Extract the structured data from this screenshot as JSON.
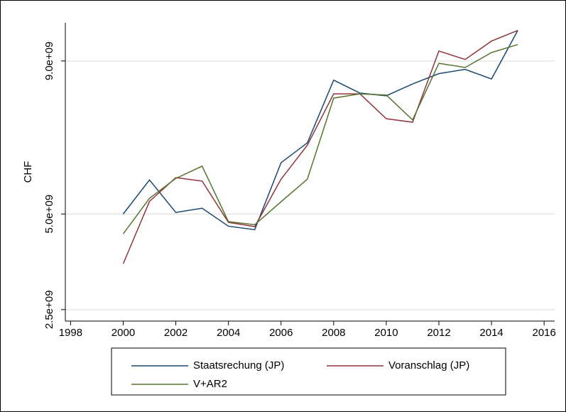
{
  "chart_data": {
    "type": "line",
    "y_label": "CHF",
    "x": [
      2000,
      2001,
      2002,
      2003,
      2004,
      2005,
      2006,
      2007,
      2008,
      2009,
      2010,
      2011,
      2012,
      2013,
      2014,
      2015
    ],
    "series": [
      {
        "name": "Staatsrechung (JP)",
        "color": "#1a476f",
        "values": [
          5000000000.0,
          5890000000.0,
          5040000000.0,
          5150000000.0,
          4680000000.0,
          4590000000.0,
          6340000000.0,
          6860000000.0,
          8500000000.0,
          8160000000.0,
          8090000000.0,
          8400000000.0,
          8670000000.0,
          8780000000.0,
          8530000000.0,
          9800000000.0
        ]
      },
      {
        "name": "Voranschlag (JP)",
        "color": "#90353b",
        "values": [
          3700000000.0,
          5330000000.0,
          5950000000.0,
          5860000000.0,
          4780000000.0,
          4670000000.0,
          5910000000.0,
          6800000000.0,
          8140000000.0,
          8140000000.0,
          7490000000.0,
          7400000000.0,
          9260000000.0,
          9040000000.0,
          9520000000.0,
          9800000000.0
        ]
      },
      {
        "name": "V+AR2",
        "color": "#55752f",
        "values": [
          4480000000.0,
          5410000000.0,
          5930000000.0,
          6250000000.0,
          4800000000.0,
          4720000000.0,
          5320000000.0,
          5910000000.0,
          8030000000.0,
          8140000000.0,
          8110000000.0,
          7460000000.0,
          8940000000.0,
          8830000000.0,
          9220000000.0,
          9430000000.0
        ]
      }
    ],
    "xlim": [
      1997.8,
      2016.4
    ],
    "xticks": [
      1998,
      2000,
      2002,
      2004,
      2006,
      2008,
      2010,
      2012,
      2014,
      2016
    ],
    "ylim": [
      2200000000.0,
      10000000000.0
    ],
    "yticks": [
      {
        "value": 2500000000,
        "label": "2.5e+09"
      },
      {
        "value": 5000000000,
        "label": "5.0e+09"
      },
      {
        "value": 9000000000,
        "label": "9.0e+09"
      }
    ],
    "grid": true
  }
}
